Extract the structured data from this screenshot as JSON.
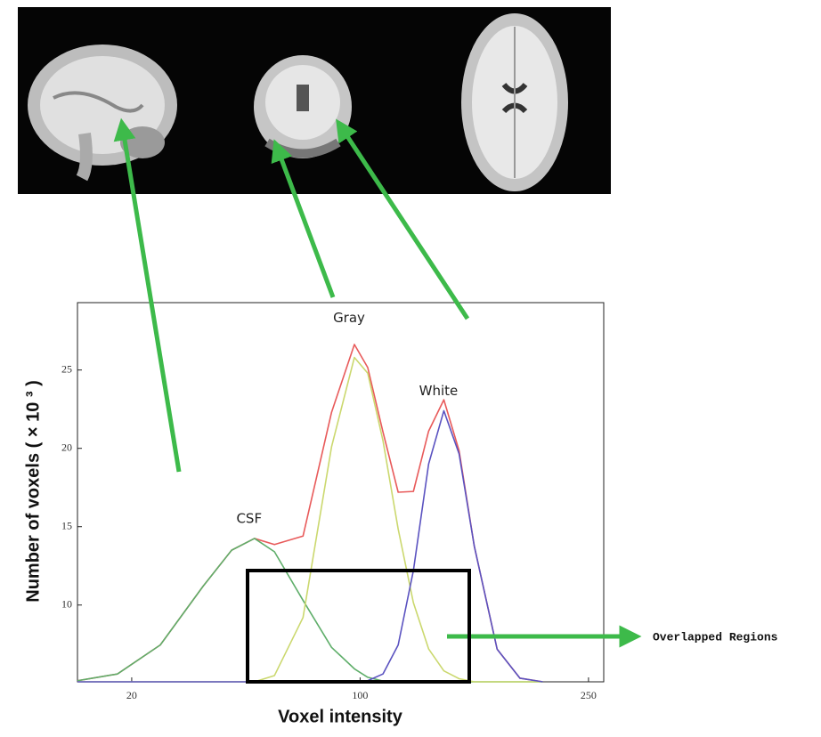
{
  "chart_data": {
    "type": "line",
    "x_label": "Voxel intensity",
    "y_label": "Number of voxels ( × 10 ³ )",
    "annotation": "Overlapped Regions",
    "x": [
      1,
      15,
      30,
      45,
      55,
      63,
      70,
      80,
      90,
      98,
      105,
      115,
      125,
      135,
      145,
      155,
      165,
      175,
      190,
      205,
      220
    ],
    "series": [
      {
        "color": "#e85a5a",
        "values": [
          5.17,
          5.6,
          7.45,
          11.2,
          13.5,
          14.25,
          13.86,
          14.4,
          22.3,
          26.63,
          25.16,
          21.05,
          17.2,
          17.25,
          21.1,
          23.1,
          19.85,
          13.75,
          7.18,
          5.33,
          5.1
        ]
      },
      {
        "name": "CSF",
        "color": "#5fae6a",
        "values": [
          5.17,
          5.6,
          7.45,
          11.2,
          13.5,
          14.25,
          13.4,
          10.3,
          7.3,
          5.93,
          5.39,
          5.15,
          5.1,
          5.1,
          5.1,
          5.1,
          5.1,
          5.1,
          5.1,
          5.1,
          5.1
        ]
      },
      {
        "name": "Gray",
        "color": "#cbd86e",
        "values": [
          5.1,
          5.1,
          5.1,
          5.1,
          5.1,
          5.1,
          5.5,
          9.2,
          20.1,
          25.8,
          24.8,
          20.5,
          14.85,
          10.15,
          7.2,
          5.8,
          5.3,
          5.1,
          5.1,
          5.1,
          5.1
        ]
      },
      {
        "name": "White",
        "color": "#5a52c0",
        "values": [
          5.1,
          5.1,
          5.1,
          5.1,
          5.1,
          5.1,
          5.1,
          5.1,
          5.1,
          5.1,
          5.17,
          5.6,
          7.45,
          12.2,
          19.0,
          22.4,
          19.65,
          13.75,
          7.18,
          5.33,
          5.1
        ]
      }
    ],
    "xlim": [
      1,
      260
    ],
    "xticks": [
      20,
      100,
      250
    ],
    "ylim": [
      5.1,
      29.3
    ],
    "yticks": [
      10,
      15,
      20,
      25
    ]
  }
}
